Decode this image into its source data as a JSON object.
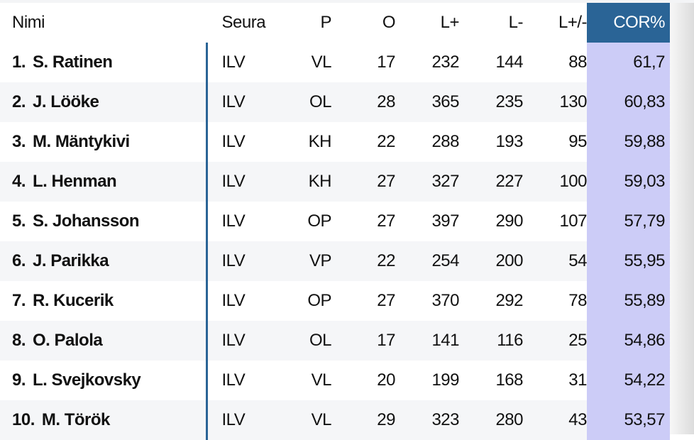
{
  "colors": {
    "header_accent": "#2a6496",
    "cor_column": "#ccccf7",
    "alt_row": "#f5f6f8"
  },
  "columns": [
    "Nimi",
    "Seura",
    "P",
    "O",
    "L+",
    "L-",
    "L+/-",
    "COR%"
  ],
  "rows": [
    {
      "rank": "1.",
      "name": "S. Ratinen",
      "club": "ILV",
      "pos": "VL",
      "o": "17",
      "lp": "232",
      "lm": "144",
      "diff": "88",
      "cor": "61,7"
    },
    {
      "rank": "2.",
      "name": "J. Lööke",
      "club": "ILV",
      "pos": "OL",
      "o": "28",
      "lp": "365",
      "lm": "235",
      "diff": "130",
      "cor": "60,83"
    },
    {
      "rank": "3.",
      "name": "M. Mäntykivi",
      "club": "ILV",
      "pos": "KH",
      "o": "22",
      "lp": "288",
      "lm": "193",
      "diff": "95",
      "cor": "59,88"
    },
    {
      "rank": "4.",
      "name": "L. Henman",
      "club": "ILV",
      "pos": "KH",
      "o": "27",
      "lp": "327",
      "lm": "227",
      "diff": "100",
      "cor": "59,03"
    },
    {
      "rank": "5.",
      "name": "S. Johansson",
      "club": "ILV",
      "pos": "OP",
      "o": "27",
      "lp": "397",
      "lm": "290",
      "diff": "107",
      "cor": "57,79"
    },
    {
      "rank": "6.",
      "name": "J. Parikka",
      "club": "ILV",
      "pos": "VP",
      "o": "22",
      "lp": "254",
      "lm": "200",
      "diff": "54",
      "cor": "55,95"
    },
    {
      "rank": "7.",
      "name": "R. Kucerik",
      "club": "ILV",
      "pos": "OP",
      "o": "27",
      "lp": "370",
      "lm": "292",
      "diff": "78",
      "cor": "55,89"
    },
    {
      "rank": "8.",
      "name": "O. Palola",
      "club": "ILV",
      "pos": "OL",
      "o": "17",
      "lp": "141",
      "lm": "116",
      "diff": "25",
      "cor": "54,86"
    },
    {
      "rank": "9.",
      "name": "L. Svejkovsky",
      "club": "ILV",
      "pos": "VL",
      "o": "20",
      "lp": "199",
      "lm": "168",
      "diff": "31",
      "cor": "54,22"
    },
    {
      "rank": "10.",
      "name": "M. Török",
      "club": "ILV",
      "pos": "VL",
      "o": "29",
      "lp": "323",
      "lm": "280",
      "diff": "43",
      "cor": "53,57"
    }
  ]
}
